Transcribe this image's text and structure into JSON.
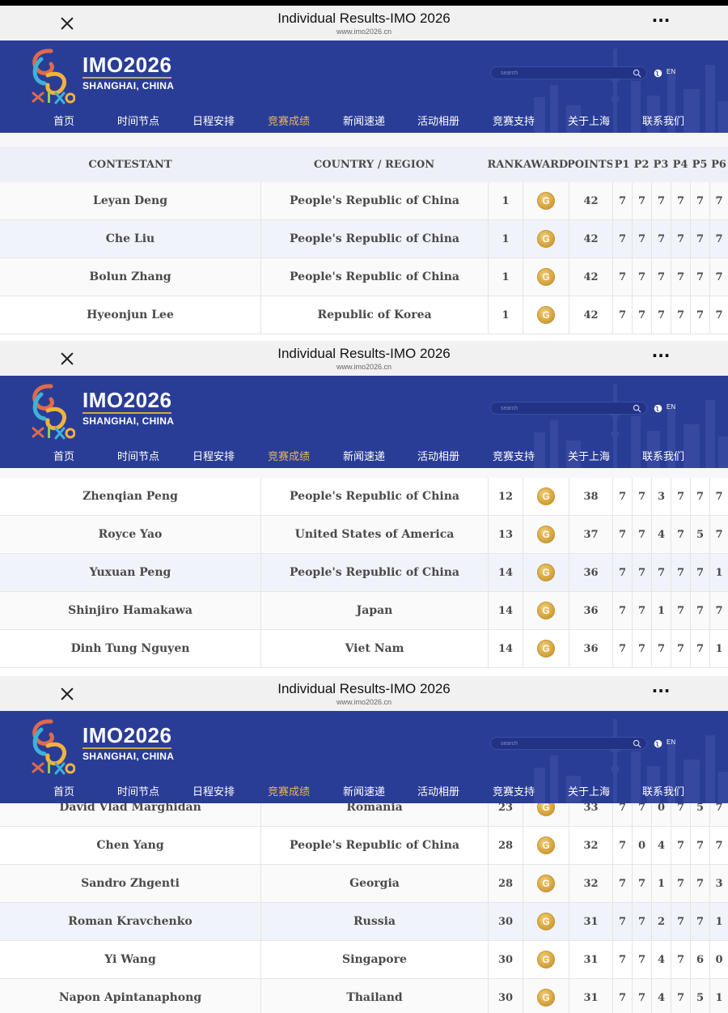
{
  "browser": {
    "title": "Individual Results-IMO 2026",
    "url": "www.imo2026.cn",
    "more_icon": "more-horizontal-icon",
    "close_icon": "close-icon"
  },
  "site": {
    "logo_title": "IMO2026",
    "logo_subtitle": "SHANGHAI, CHINA",
    "search_placeholder": "search",
    "lang": "EN",
    "brand_color": "#2a3d96",
    "active_color": "#e7b75a",
    "nav": [
      "首页",
      "时间节点",
      "日程安排",
      "竞赛成绩",
      "新闻速递",
      "活动相册",
      "竞赛支持",
      "关于上海",
      "联系我们"
    ],
    "nav_active_index": 3
  },
  "table": {
    "headers": [
      "CONTESTANT",
      "COUNTRY / REGION",
      "RANK",
      "AWARD",
      "POINTS",
      "P1",
      "P2",
      "P3",
      "P4",
      "P5",
      "P6"
    ],
    "award_label": "G"
  },
  "panels": [
    {
      "rows": [
        {
          "name": "Leyan Deng",
          "country": "People's Republic of China",
          "rank": "1",
          "award": "G",
          "points": "42",
          "p": [
            "7",
            "7",
            "7",
            "7",
            "7",
            "7"
          ]
        },
        {
          "name": "Che Liu",
          "country": "People's Republic of China",
          "rank": "1",
          "award": "G",
          "points": "42",
          "p": [
            "7",
            "7",
            "7",
            "7",
            "7",
            "7"
          ]
        },
        {
          "name": "Bolun Zhang",
          "country": "People's Republic of China",
          "rank": "1",
          "award": "G",
          "points": "42",
          "p": [
            "7",
            "7",
            "7",
            "7",
            "7",
            "7"
          ]
        },
        {
          "name": "Hyeonjun Lee",
          "country": "Republic of Korea",
          "rank": "1",
          "award": "G",
          "points": "42",
          "p": [
            "7",
            "7",
            "7",
            "7",
            "7",
            "7"
          ]
        }
      ]
    },
    {
      "rows": [
        {
          "name": "Zhenqian Peng",
          "country": "People's Republic of China",
          "rank": "12",
          "award": "G",
          "points": "38",
          "p": [
            "7",
            "7",
            "3",
            "7",
            "7",
            "7"
          ]
        },
        {
          "name": "Royce Yao",
          "country": "United States of America",
          "rank": "13",
          "award": "G",
          "points": "37",
          "p": [
            "7",
            "7",
            "4",
            "7",
            "5",
            "7"
          ]
        },
        {
          "name": "Yuxuan Peng",
          "country": "People's Republic of China",
          "rank": "14",
          "award": "G",
          "points": "36",
          "p": [
            "7",
            "7",
            "7",
            "7",
            "7",
            "1"
          ]
        },
        {
          "name": "Shinjiro Hamakawa",
          "country": "Japan",
          "rank": "14",
          "award": "G",
          "points": "36",
          "p": [
            "7",
            "7",
            "1",
            "7",
            "7",
            "7"
          ]
        },
        {
          "name": "Dinh Tung Nguyen",
          "country": "Viet Nam",
          "rank": "14",
          "award": "G",
          "points": "36",
          "p": [
            "7",
            "7",
            "7",
            "7",
            "7",
            "1"
          ]
        }
      ]
    },
    {
      "rows": [
        {
          "name": "David Vlad Marghidan",
          "country": "Romania",
          "rank": "23",
          "award": "G",
          "points": "33",
          "p": [
            "7",
            "7",
            "0",
            "7",
            "5",
            "7"
          ]
        },
        {
          "name": "Chen Yang",
          "country": "People's Republic of China",
          "rank": "28",
          "award": "G",
          "points": "32",
          "p": [
            "7",
            "0",
            "4",
            "7",
            "7",
            "7"
          ]
        },
        {
          "name": "Sandro Zhgenti",
          "country": "Georgia",
          "rank": "28",
          "award": "G",
          "points": "32",
          "p": [
            "7",
            "7",
            "1",
            "7",
            "7",
            "3"
          ]
        },
        {
          "name": "Roman Kravchenko",
          "country": "Russia",
          "rank": "30",
          "award": "G",
          "points": "31",
          "p": [
            "7",
            "7",
            "2",
            "7",
            "7",
            "1"
          ]
        },
        {
          "name": "Yi Wang",
          "country": "Singapore",
          "rank": "30",
          "award": "G",
          "points": "31",
          "p": [
            "7",
            "7",
            "4",
            "7",
            "6",
            "0"
          ]
        },
        {
          "name": "Napon Apintanaphong",
          "country": "Thailand",
          "rank": "30",
          "award": "G",
          "points": "31",
          "p": [
            "7",
            "7",
            "4",
            "7",
            "5",
            "1"
          ]
        }
      ]
    }
  ]
}
